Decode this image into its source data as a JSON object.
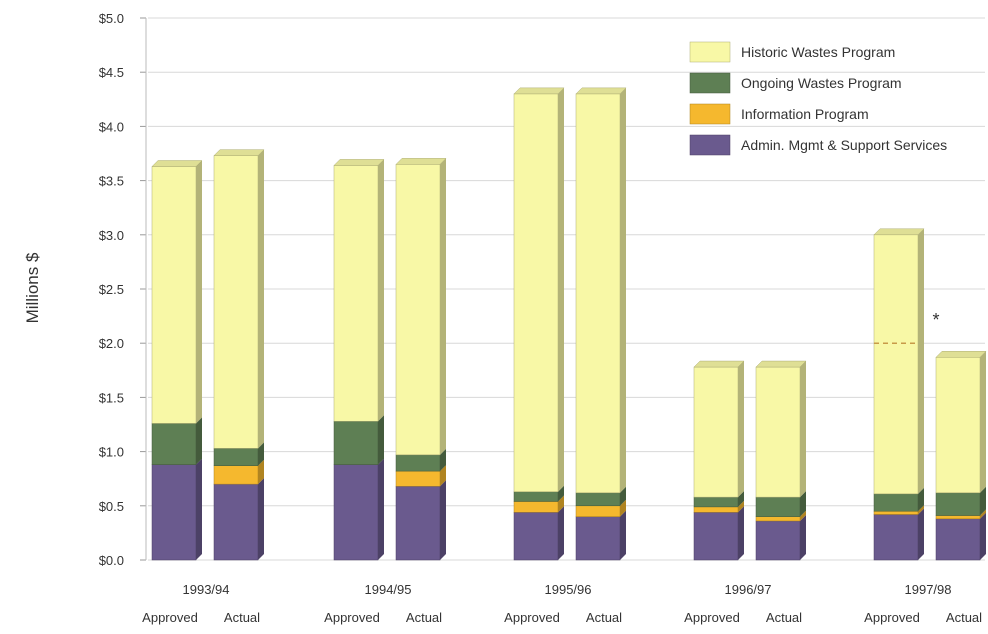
{
  "chart_data": {
    "type": "bar",
    "stacked": true,
    "ylabel": "Millions $",
    "ylim": [
      0,
      5.0
    ],
    "yticks": [
      "$0.0",
      "$0.5",
      "$1.0",
      "$1.5",
      "$2.0",
      "$2.5",
      "$3.0",
      "$3.5",
      "$4.0",
      "$4.5",
      "$5.0"
    ],
    "grid": true,
    "legend_position": "top-right",
    "groups": [
      "1993/94",
      "1994/95",
      "1995/96",
      "1996/97",
      "1997/98"
    ],
    "bar_labels": [
      "Approved",
      "Actual"
    ],
    "series": [
      {
        "name": "Admin. Mgmt & Support Services",
        "color": "#6a5a8e",
        "values": [
          [
            0.88,
            0.7
          ],
          [
            0.88,
            0.68
          ],
          [
            0.44,
            0.4
          ],
          [
            0.44,
            0.36
          ],
          [
            0.42,
            0.38
          ]
        ]
      },
      {
        "name": "Information Program",
        "color": "#f5b82e",
        "values": [
          [
            0.0,
            0.17
          ],
          [
            0.0,
            0.14
          ],
          [
            0.1,
            0.1
          ],
          [
            0.05,
            0.04
          ],
          [
            0.03,
            0.03
          ]
        ]
      },
      {
        "name": "Ongoing Wastes Program",
        "color": "#5e7f54",
        "values": [
          [
            0.38,
            0.16
          ],
          [
            0.4,
            0.15
          ],
          [
            0.09,
            0.12
          ],
          [
            0.09,
            0.18
          ],
          [
            0.16,
            0.21
          ]
        ]
      },
      {
        "name": "Historic Wastes Program",
        "color": "#f8f8a6",
        "values": [
          [
            2.37,
            2.7
          ],
          [
            2.36,
            2.68
          ],
          [
            3.67,
            3.68
          ],
          [
            1.2,
            1.2
          ],
          [
            2.39,
            1.25
          ]
        ]
      }
    ],
    "annotations": [
      {
        "text": "*",
        "group": "1997/98",
        "bar": "Actual"
      },
      {
        "type": "dashed-line",
        "group": "1997/98",
        "bar": "Approved",
        "value": 2.0
      }
    ]
  }
}
